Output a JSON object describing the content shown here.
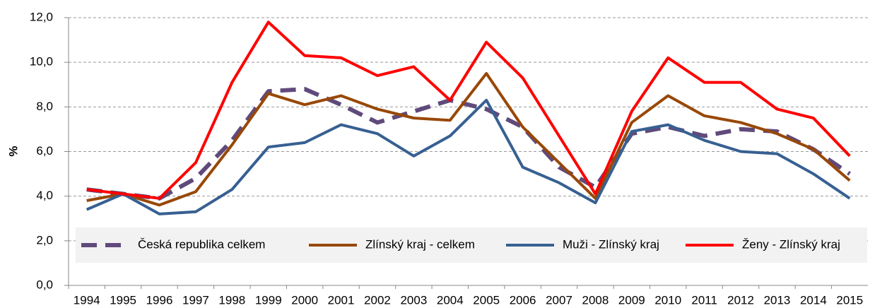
{
  "chart_data": {
    "type": "line",
    "y_label": "%",
    "categories": [
      "1994",
      "1995",
      "1996",
      "1997",
      "1998",
      "1999",
      "2000",
      "2001",
      "2002",
      "2003",
      "2004",
      "2005",
      "2006",
      "2007",
      "2008",
      "2009",
      "2010",
      "2011",
      "2012",
      "2013",
      "2014",
      "2015"
    ],
    "series": [
      {
        "name": "Česká republika celkem",
        "color": "#604a7b",
        "dashed": true,
        "values": [
          4.3,
          4.1,
          3.9,
          4.8,
          6.5,
          8.7,
          8.8,
          8.1,
          7.3,
          7.8,
          8.3,
          7.9,
          7.1,
          5.3,
          4.4,
          6.8,
          7.1,
          6.7,
          7.0,
          6.9,
          6.1,
          5.0
        ]
      },
      {
        "name": "Zlínský kraj - celkem",
        "color": "#984807",
        "values": [
          3.8,
          4.1,
          3.6,
          4.2,
          6.3,
          8.6,
          8.1,
          8.5,
          7.9,
          7.5,
          7.4,
          9.5,
          7.1,
          5.5,
          3.9,
          7.3,
          8.5,
          7.6,
          7.3,
          6.8,
          6.1,
          4.7
        ]
      },
      {
        "name": "Muži - Zlínský kraj",
        "color": "#376092",
        "values": [
          3.4,
          4.1,
          3.2,
          3.3,
          4.3,
          6.2,
          6.4,
          7.2,
          6.8,
          5.8,
          6.7,
          8.3,
          5.3,
          4.6,
          3.7,
          6.9,
          7.2,
          6.5,
          6.0,
          5.9,
          5.0,
          3.9
        ]
      },
      {
        "name": "Ženy - Zlínský kraj",
        "color": "#ff0000",
        "values": [
          4.3,
          4.1,
          3.9,
          5.5,
          9.1,
          11.8,
          10.3,
          10.2,
          9.4,
          9.8,
          8.3,
          10.9,
          9.3,
          6.7,
          4.1,
          7.8,
          10.2,
          9.1,
          9.1,
          7.9,
          7.5,
          5.8
        ]
      }
    ],
    "ylim": [
      0,
      12
    ],
    "yticks": [
      {
        "value": 0,
        "label": "0,0"
      },
      {
        "value": 2,
        "label": "2,0"
      },
      {
        "value": 4,
        "label": "4,0"
      },
      {
        "value": 6,
        "label": "6,0"
      },
      {
        "value": 8,
        "label": "8,0"
      },
      {
        "value": 10,
        "label": "10,0"
      },
      {
        "value": 12,
        "label": "12,0"
      }
    ],
    "grid": true,
    "legend": "bottom"
  }
}
